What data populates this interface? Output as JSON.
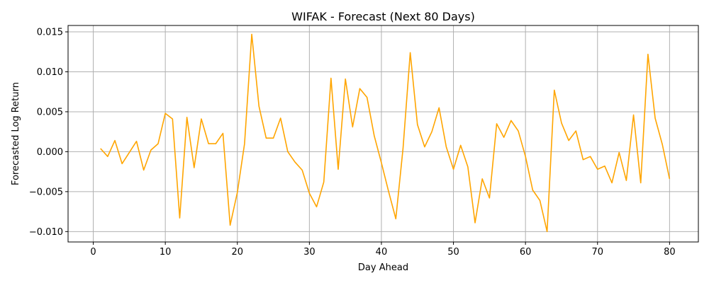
{
  "chart_data": {
    "type": "line",
    "title": "WIFAK - Forecast (Next 80 Days)",
    "xlabel": "Day Ahead",
    "ylabel": "Forecasted Log Return",
    "xlim": [
      -3.5,
      84
    ],
    "ylim": [
      -0.0113,
      0.0158
    ],
    "xticks": [
      0,
      10,
      20,
      30,
      40,
      50,
      60,
      70,
      80
    ],
    "xtick_labels": [
      "0",
      "10",
      "20",
      "30",
      "40",
      "50",
      "60",
      "70",
      "80"
    ],
    "yticks": [
      -0.01,
      -0.005,
      0.0,
      0.005,
      0.01,
      0.015
    ],
    "ytick_labels": [
      "−0.010",
      "−0.005",
      "0.000",
      "0.005",
      "0.010",
      "0.015"
    ],
    "grid": true,
    "series": [
      {
        "color": "#ffa500",
        "x": [
          1,
          2,
          3,
          4,
          5,
          6,
          7,
          8,
          9,
          10,
          11,
          12,
          13,
          14,
          15,
          16,
          17,
          18,
          19,
          20,
          21,
          22,
          23,
          24,
          25,
          26,
          27,
          28,
          29,
          30,
          31,
          32,
          33,
          34,
          35,
          36,
          37,
          38,
          39,
          40,
          41,
          42,
          43,
          44,
          45,
          46,
          47,
          48,
          49,
          50,
          51,
          52,
          53,
          54,
          55,
          56,
          57,
          58,
          59,
          60,
          61,
          62,
          63,
          64,
          65,
          66,
          67,
          68,
          69,
          70,
          71,
          72,
          73,
          74,
          75,
          76,
          77,
          78,
          79,
          80
        ],
        "values": [
          0.0004,
          -0.0006,
          0.0014,
          -0.0015,
          -0.0001,
          0.0013,
          -0.0023,
          0.0002,
          0.001,
          0.0048,
          0.0041,
          -0.0083,
          0.0043,
          -0.002,
          0.0041,
          0.001,
          0.001,
          0.0023,
          -0.0092,
          -0.0051,
          0.001,
          0.0147,
          0.0057,
          0.0017,
          0.0017,
          0.0042,
          0.0,
          -0.0013,
          -0.0023,
          -0.0052,
          -0.0069,
          -0.0038,
          0.0092,
          -0.0022,
          0.0091,
          0.0031,
          0.0079,
          0.0068,
          0.002,
          -0.0014,
          -0.005,
          -0.0084,
          0.0004,
          0.0124,
          0.0034,
          0.0006,
          0.0025,
          0.0055,
          0.0006,
          -0.0022,
          0.0008,
          -0.0019,
          -0.0089,
          -0.0034,
          -0.0058,
          0.0035,
          0.0018,
          0.0039,
          0.0026,
          -0.0006,
          -0.0048,
          -0.0061,
          -0.01,
          0.0077,
          0.0036,
          0.0014,
          0.0026,
          -0.001,
          -0.0006,
          -0.0022,
          -0.0018,
          -0.0039,
          -0.0001,
          -0.0036,
          0.0046,
          -0.0039,
          0.0122,
          0.0042,
          0.0009,
          -0.0034
        ]
      }
    ]
  }
}
